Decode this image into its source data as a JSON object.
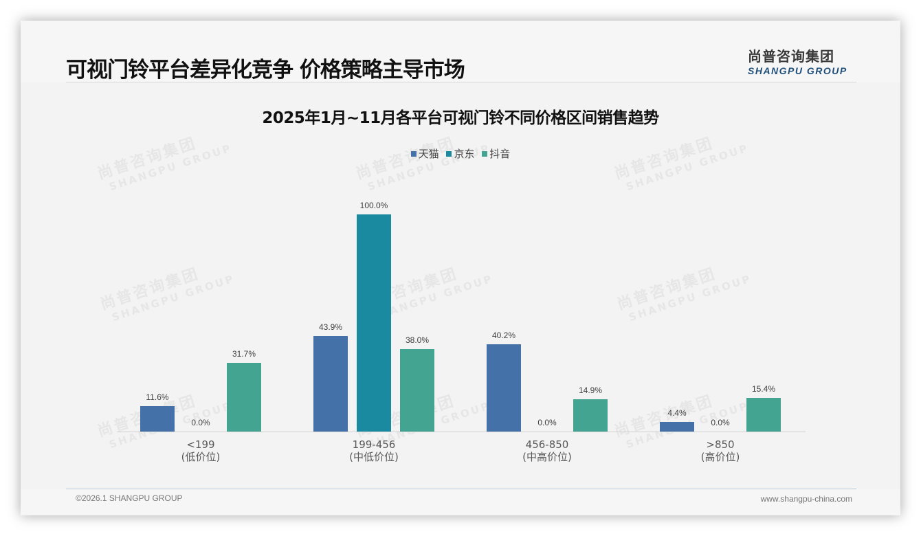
{
  "header": {
    "title": "可视门铃平台差异化竞争 价格策略主导市场",
    "logo_cn": "尚普咨询集团",
    "logo_en": "SHANGPU GROUP"
  },
  "watermark": {
    "cn": "尚普咨询集团",
    "en": "SHANGPU GROUP"
  },
  "footer": {
    "copyright": "©2026.1 SHANGPU GROUP",
    "website": "www.shangpu-china.com"
  },
  "chart_data": {
    "type": "bar",
    "title": "2025年1月~11月各平台可视门铃不同价格区间销售趋势",
    "xlabel": "",
    "ylabel": "",
    "ylim": [
      0,
      100
    ],
    "grid": false,
    "legend_position": "top",
    "categories": [
      "<199",
      "199-456",
      "456-850",
      ">850"
    ],
    "category_sublabels": [
      "(低价位)",
      "(中低价位)",
      "(中高价位)",
      "(高价位)"
    ],
    "series": [
      {
        "name": "天猫",
        "color": "#4472a8",
        "values": [
          11.6,
          43.9,
          40.2,
          4.4
        ],
        "labels": [
          "11.6%",
          "43.9%",
          "40.2%",
          "4.4%"
        ]
      },
      {
        "name": "京东",
        "color": "#1a8aa0",
        "values": [
          0.0,
          100.0,
          0.0,
          0.0
        ],
        "labels": [
          "0.0%",
          "100.0%",
          "0.0%",
          "0.0%"
        ]
      },
      {
        "name": "抖音",
        "color": "#43a591",
        "values": [
          31.7,
          38.0,
          14.9,
          15.4
        ],
        "labels": [
          "31.7%",
          "38.0%",
          "14.9%",
          "15.4%"
        ]
      }
    ]
  }
}
